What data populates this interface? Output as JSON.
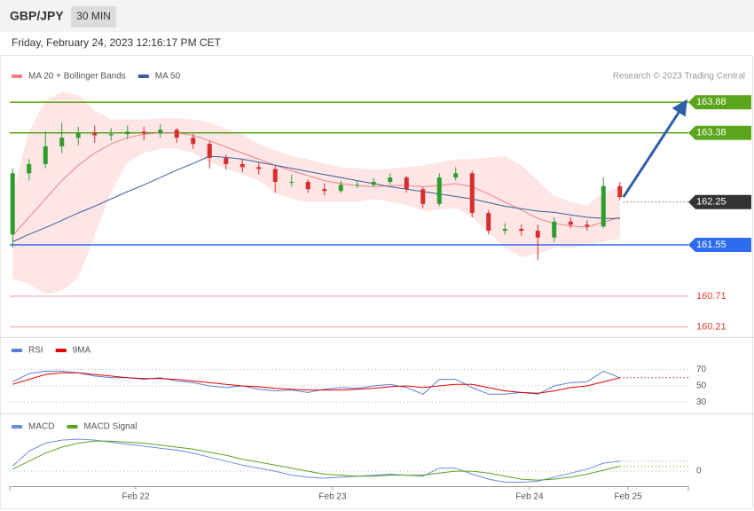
{
  "header": {
    "symbol": "GBP/JPY",
    "timeframe": "30 MIN",
    "timestamp": "Friday, February 24, 2023 12:16:17 PM CET",
    "credit": "Research © 2023 Trading Central"
  },
  "chart_data": [
    {
      "type": "candlestick",
      "x": [
        -15,
        -13,
        -11,
        -9,
        -7,
        -5,
        -3,
        -1,
        1,
        3,
        5,
        7,
        9,
        11,
        13,
        15,
        17,
        19,
        21,
        23,
        25,
        27,
        29,
        31,
        33,
        35,
        37,
        39,
        41,
        43,
        45,
        47,
        49,
        51,
        53,
        55,
        57,
        59
      ],
      "ohlc": [
        [
          161.72,
          162.8,
          161.5,
          162.72
        ],
        [
          162.72,
          162.95,
          162.6,
          162.87
        ],
        [
          162.87,
          163.4,
          162.8,
          163.16
        ],
        [
          163.16,
          163.55,
          163.05,
          163.3
        ],
        [
          163.3,
          163.48,
          163.18,
          163.37
        ],
        [
          163.37,
          163.5,
          163.22,
          163.34
        ],
        [
          163.34,
          163.46,
          163.25,
          163.36
        ],
        [
          163.36,
          163.5,
          163.28,
          163.4
        ],
        [
          163.4,
          163.48,
          163.26,
          163.37
        ],
        [
          163.37,
          163.52,
          163.3,
          163.43
        ],
        [
          163.43,
          163.46,
          163.22,
          163.3
        ],
        [
          163.3,
          163.36,
          163.12,
          163.2
        ],
        [
          163.2,
          163.25,
          162.8,
          162.97
        ],
        [
          162.97,
          163.02,
          162.78,
          162.87
        ],
        [
          162.87,
          162.95,
          162.74,
          162.82
        ],
        [
          162.82,
          162.9,
          162.7,
          162.79
        ],
        [
          162.79,
          162.84,
          162.4,
          162.58
        ],
        [
          162.58,
          162.7,
          162.5,
          162.58
        ],
        [
          162.58,
          162.62,
          162.4,
          162.46
        ],
        [
          162.46,
          162.55,
          162.36,
          162.43
        ],
        [
          162.43,
          162.6,
          162.4,
          162.53
        ],
        [
          162.53,
          162.6,
          162.48,
          162.53
        ],
        [
          162.53,
          162.64,
          162.5,
          162.58
        ],
        [
          162.58,
          162.72,
          162.54,
          162.65
        ],
        [
          162.65,
          162.68,
          162.4,
          162.46
        ],
        [
          162.46,
          162.5,
          162.15,
          162.22
        ],
        [
          162.22,
          162.72,
          162.18,
          162.65
        ],
        [
          162.65,
          162.82,
          162.6,
          162.72
        ],
        [
          162.72,
          162.76,
          162.0,
          162.07
        ],
        [
          162.07,
          162.12,
          161.72,
          161.78
        ],
        [
          161.78,
          161.9,
          161.72,
          161.81
        ],
        [
          161.81,
          161.88,
          161.7,
          161.78
        ],
        [
          161.78,
          161.88,
          161.3,
          161.67
        ],
        [
          161.67,
          162.0,
          161.6,
          161.93
        ],
        [
          161.93,
          162.0,
          161.82,
          161.88
        ],
        [
          161.88,
          161.95,
          161.78,
          161.85
        ],
        [
          161.85,
          162.65,
          161.82,
          162.51
        ],
        [
          162.51,
          162.58,
          162.28,
          162.33
        ]
      ],
      "up_color": "#2e9d2e",
      "down_color": "#d62d2d",
      "series": [
        {
          "name": "MA 20 + Bollinger Bands",
          "color": "#f08080",
          "values": [
            161.7,
            162.0,
            162.3,
            162.6,
            162.85,
            163.05,
            163.2,
            163.3,
            163.36,
            163.38,
            163.38,
            163.34,
            163.25,
            163.15,
            163.05,
            162.95,
            162.85,
            162.76,
            162.68,
            162.6,
            162.55,
            162.52,
            162.5,
            162.52,
            162.52,
            162.5,
            162.52,
            162.55,
            162.5,
            162.38,
            162.25,
            162.12,
            161.98,
            161.9,
            161.86,
            161.84,
            161.92,
            162.0
          ]
        },
        {
          "name": "MA 50",
          "color": "#3a5f9e",
          "values": [
            161.6,
            161.72,
            161.83,
            161.95,
            162.07,
            162.18,
            162.3,
            162.42,
            162.53,
            162.65,
            162.77,
            162.88,
            163.0,
            162.98,
            162.95,
            162.9,
            162.85,
            162.8,
            162.75,
            162.7,
            162.65,
            162.6,
            162.55,
            162.5,
            162.46,
            162.42,
            162.38,
            162.34,
            162.3,
            162.24,
            162.18,
            162.14,
            162.1,
            162.08,
            162.04,
            162.0,
            161.98,
            161.98
          ]
        }
      ],
      "bands": {
        "color": "#fdd5d5",
        "upper": [
          162.4,
          163.4,
          163.9,
          164.05,
          164.0,
          163.75,
          163.6,
          163.6,
          163.6,
          163.62,
          163.62,
          163.6,
          163.55,
          163.45,
          163.35,
          163.2,
          163.1,
          163.0,
          162.95,
          162.88,
          162.82,
          162.8,
          162.78,
          162.8,
          162.82,
          162.85,
          162.9,
          162.95,
          162.95,
          162.98,
          163.0,
          162.85,
          162.6,
          162.35,
          162.25,
          162.2,
          162.4,
          162.5
        ],
        "lower": [
          161.0,
          160.9,
          160.75,
          160.8,
          161.0,
          161.7,
          162.4,
          162.9,
          163.05,
          163.12,
          163.12,
          163.05,
          162.9,
          162.8,
          162.7,
          162.6,
          162.4,
          162.3,
          162.25,
          162.25,
          162.25,
          162.25,
          162.3,
          162.25,
          162.2,
          162.1,
          162.12,
          162.15,
          162.0,
          161.75,
          161.5,
          161.35,
          161.4,
          161.5,
          161.5,
          161.55,
          161.6,
          161.65
        ]
      },
      "levels": [
        {
          "value": 163.88,
          "color": "#5aa51b",
          "style": "tag"
        },
        {
          "value": 163.38,
          "color": "#5aa51b",
          "style": "tag"
        },
        {
          "value": 162.25,
          "color": "#333333",
          "style": "dotted-tag"
        },
        {
          "value": 161.55,
          "color": "#2d6cf0",
          "style": "tag"
        },
        {
          "value": 160.71,
          "color": "#e53935",
          "style": "text"
        },
        {
          "value": 160.21,
          "color": "#e53935",
          "style": "text"
        }
      ],
      "arrow_color": "#2f5fa8",
      "xlim": [
        -15.35,
        67.35
      ],
      "ylim": [
        160.07,
        164.16
      ]
    },
    {
      "type": "line",
      "series": [
        {
          "name": "RSI",
          "color": "#5b7fd6",
          "values": [
            55,
            65,
            68,
            68,
            66,
            62,
            60,
            60,
            58,
            60,
            56,
            54,
            50,
            48,
            50,
            46,
            44,
            45,
            42,
            46,
            48,
            47,
            50,
            52,
            48,
            40,
            58,
            58,
            48,
            40,
            40,
            42,
            40,
            50,
            54,
            55,
            68,
            60
          ]
        },
        {
          "name": "9MA",
          "color": "#e00000",
          "values": [
            52,
            58,
            64,
            66,
            66,
            64,
            62,
            60,
            59,
            59,
            58,
            56,
            54,
            52,
            50,
            49,
            47,
            46,
            45,
            45,
            45,
            46,
            47,
            49,
            50,
            48,
            50,
            52,
            52,
            48,
            44,
            42,
            41,
            44,
            48,
            50,
            55,
            60
          ]
        }
      ],
      "ylim": [
        18,
        98
      ],
      "yticks": [
        30,
        50,
        70
      ]
    },
    {
      "type": "line",
      "series": [
        {
          "name": "MACD",
          "color": "#6a8cde",
          "values": [
            0.05,
            0.2,
            0.28,
            0.31,
            0.32,
            0.31,
            0.29,
            0.27,
            0.25,
            0.23,
            0.21,
            0.18,
            0.14,
            0.1,
            0.06,
            0.03,
            0.0,
            -0.04,
            -0.06,
            -0.07,
            -0.06,
            -0.05,
            -0.04,
            -0.03,
            -0.04,
            -0.05,
            0.03,
            0.03,
            -0.03,
            -0.08,
            -0.11,
            -0.11,
            -0.1,
            -0.06,
            -0.02,
            0.02,
            0.08,
            0.1
          ]
        },
        {
          "name": "MACD Signal",
          "color": "#5aa51b",
          "values": [
            0.02,
            0.1,
            0.18,
            0.24,
            0.28,
            0.3,
            0.3,
            0.29,
            0.28,
            0.26,
            0.24,
            0.22,
            0.19,
            0.16,
            0.12,
            0.09,
            0.06,
            0.03,
            0.0,
            -0.03,
            -0.04,
            -0.05,
            -0.05,
            -0.04,
            -0.04,
            -0.04,
            -0.02,
            0.0,
            0.0,
            -0.02,
            -0.05,
            -0.08,
            -0.09,
            -0.08,
            -0.06,
            -0.03,
            0.01,
            0.05
          ]
        }
      ],
      "ylim": [
        -0.15,
        0.4
      ],
      "yticks": [
        0
      ],
      "xticks": [
        {
          "value": 0,
          "label": "Feb 22"
        },
        {
          "value": 24,
          "label": "Feb 23"
        },
        {
          "value": 48,
          "label": "Feb 24"
        },
        {
          "value": 60,
          "label": "Feb 25"
        }
      ]
    }
  ]
}
